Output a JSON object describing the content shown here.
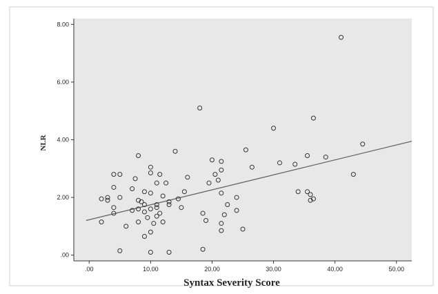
{
  "chart_data": {
    "type": "scatter",
    "xlabel": "Syntax  Severity Score",
    "ylabel": "NLR",
    "xlim": [
      -2.5,
      52.5
    ],
    "ylim": [
      -0.2,
      8.2
    ],
    "x_ticks": [
      0,
      10,
      20,
      30,
      40,
      50
    ],
    "x_tick_labels": [
      ".00",
      "10.00",
      "20.00",
      "30.00",
      "40.00",
      "50.00"
    ],
    "y_ticks": [
      0,
      2,
      4,
      6,
      8
    ],
    "y_tick_labels": [
      ".00",
      "2.00",
      "4.00",
      "6.00",
      "8.00"
    ],
    "grid": false,
    "colors": {
      "plot_background": "#e8e8e8",
      "marker_stroke": "#333333",
      "fit_line": "#666666",
      "axis": "#333333"
    },
    "fit_line": {
      "x": [
        -0.5,
        52.5
      ],
      "y": [
        1.2,
        3.95
      ]
    },
    "points": [
      [
        2,
        1.15
      ],
      [
        2,
        1.95
      ],
      [
        3,
        2.0
      ],
      [
        3,
        1.9
      ],
      [
        4,
        2.8
      ],
      [
        4,
        2.35
      ],
      [
        4,
        1.65
      ],
      [
        4,
        1.45
      ],
      [
        5,
        2.8
      ],
      [
        5,
        2.0
      ],
      [
        5,
        0.15
      ],
      [
        6,
        1.0
      ],
      [
        7,
        2.3
      ],
      [
        7,
        1.55
      ],
      [
        7.5,
        2.65
      ],
      [
        8,
        3.45
      ],
      [
        8,
        1.9
      ],
      [
        8,
        1.6
      ],
      [
        8,
        1.15
      ],
      [
        8.5,
        1.85
      ],
      [
        9,
        1.75
      ],
      [
        9,
        1.5
      ],
      [
        9,
        2.2
      ],
      [
        9,
        0.65
      ],
      [
        9.5,
        1.3
      ],
      [
        10,
        3.05
      ],
      [
        10,
        2.85
      ],
      [
        10,
        2.15
      ],
      [
        10,
        1.6
      ],
      [
        10,
        0.8
      ],
      [
        10,
        0.1
      ],
      [
        10.5,
        1.1
      ],
      [
        11,
        2.5
      ],
      [
        11,
        1.75
      ],
      [
        11,
        1.65
      ],
      [
        11,
        1.35
      ],
      [
        11.5,
        2.8
      ],
      [
        11.5,
        1.45
      ],
      [
        12,
        2.05
      ],
      [
        12,
        1.15
      ],
      [
        12.5,
        2.5
      ],
      [
        13,
        1.85
      ],
      [
        13,
        1.75
      ],
      [
        13,
        0.1
      ],
      [
        14,
        3.6
      ],
      [
        14.5,
        1.95
      ],
      [
        15,
        1.65
      ],
      [
        15.5,
        2.2
      ],
      [
        16,
        2.7
      ],
      [
        18,
        5.1
      ],
      [
        18.5,
        0.2
      ],
      [
        18.5,
        1.45
      ],
      [
        19,
        1.2
      ],
      [
        19.5,
        2.5
      ],
      [
        20,
        3.3
      ],
      [
        20.5,
        2.8
      ],
      [
        21,
        2.6
      ],
      [
        21.5,
        3.25
      ],
      [
        21.5,
        2.95
      ],
      [
        21.5,
        2.15
      ],
      [
        21.5,
        1.1
      ],
      [
        21.5,
        0.85
      ],
      [
        22,
        1.4
      ],
      [
        22.5,
        1.75
      ],
      [
        24,
        2.0
      ],
      [
        24,
        1.55
      ],
      [
        25,
        0.9
      ],
      [
        25.5,
        3.65
      ],
      [
        26.5,
        3.05
      ],
      [
        30,
        4.4
      ],
      [
        31,
        3.2
      ],
      [
        33.5,
        3.15
      ],
      [
        34,
        2.2
      ],
      [
        35.5,
        3.45
      ],
      [
        35.5,
        2.2
      ],
      [
        36,
        2.1
      ],
      [
        36,
        1.9
      ],
      [
        36.5,
        4.75
      ],
      [
        36.5,
        1.95
      ],
      [
        38.5,
        3.4
      ],
      [
        41,
        7.55
      ],
      [
        43,
        2.8
      ],
      [
        44.5,
        3.85
      ]
    ]
  }
}
